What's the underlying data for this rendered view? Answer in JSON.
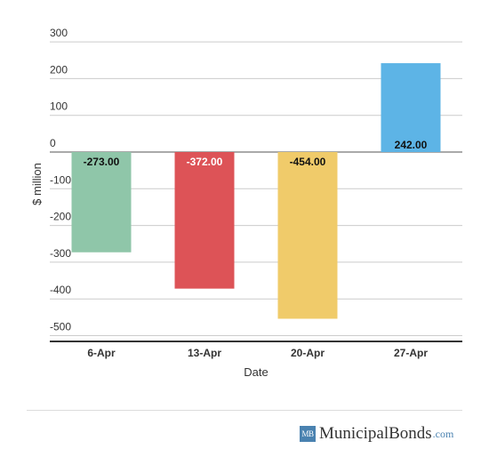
{
  "chart_data": {
    "type": "bar",
    "categories": [
      "6-Apr",
      "13-Apr",
      "20-Apr",
      "27-Apr"
    ],
    "values": [
      -273.0,
      -372.0,
      -454.0,
      242.0
    ],
    "value_labels": [
      "-273.00",
      "-372.00",
      "-454.00",
      "242.00"
    ],
    "bar_colors": [
      "#8fc6a9",
      "#dd5357",
      "#f0cb6a",
      "#5db4e6"
    ],
    "label_colors": [
      "#111111",
      "#ffffff",
      "#111111",
      "#111111"
    ],
    "xlabel": "Date",
    "ylabel": "$ million",
    "yticks": [
      300,
      200,
      100,
      0,
      -100,
      -200,
      -300,
      -400,
      -500
    ],
    "ylim": [
      -500,
      300
    ],
    "grid": true,
    "legend": "none"
  },
  "brand": {
    "mark": "MB",
    "name": "MunicipalBonds",
    "suffix": ".com",
    "color": "#4a82b0"
  }
}
